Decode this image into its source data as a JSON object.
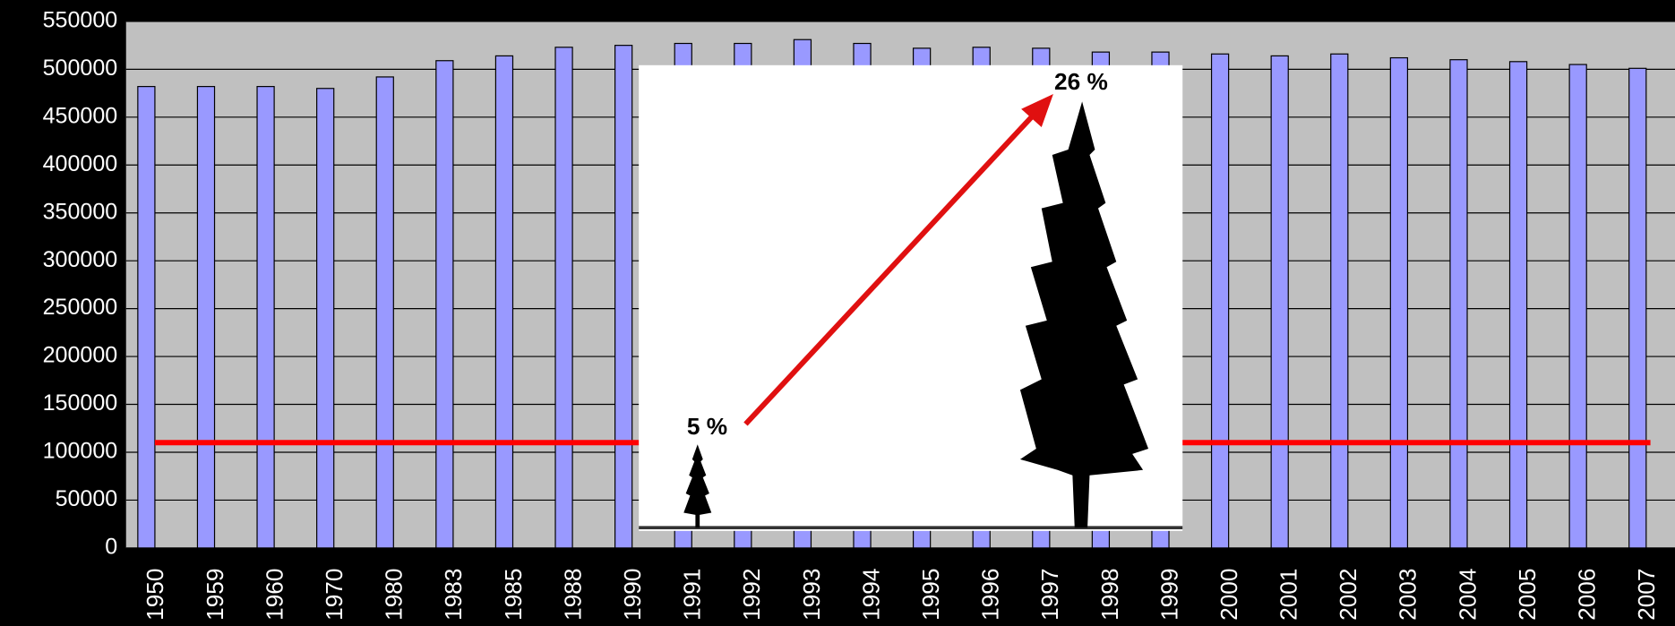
{
  "chart_data": {
    "type": "bar",
    "categories": [
      "1950",
      "1959",
      "1960",
      "1970",
      "1980",
      "1983",
      "1985",
      "1988",
      "1990",
      "1991",
      "1992",
      "1993",
      "1994",
      "1995",
      "1996",
      "1997",
      "1998",
      "1999",
      "2000",
      "2001",
      "2002",
      "2003",
      "2004",
      "2005",
      "2006",
      "2007"
    ],
    "values": [
      482000,
      482000,
      482000,
      480000,
      492000,
      509000,
      514000,
      523000,
      525000,
      527000,
      527000,
      531000,
      527000,
      522000,
      523000,
      522000,
      518000,
      518000,
      516000,
      514000,
      516000,
      512000,
      510000,
      508000,
      505000,
      501000
    ],
    "color": "#9999ff",
    "ylim": [
      0,
      550000
    ],
    "yticks": [
      0,
      50000,
      100000,
      150000,
      200000,
      250000,
      300000,
      350000,
      400000,
      450000,
      500000,
      550000
    ],
    "grid": true,
    "reference_line": {
      "value": 110000,
      "color": "#ff0000"
    },
    "annotations": [
      "5 %",
      "26 %"
    ]
  }
}
